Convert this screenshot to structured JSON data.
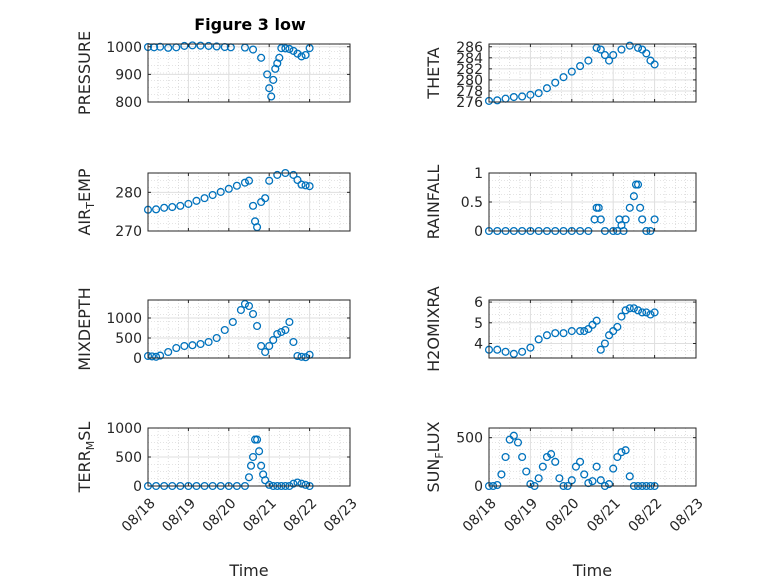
{
  "figure_title": "Figure 3 low",
  "colors": {
    "marker": "#0072BD",
    "axis": "#262626",
    "grid": "#dfdfdf",
    "minor_grid": "#c8c8c8"
  },
  "chart_data": [
    {
      "type": "scatter",
      "panel": "top-left",
      "ylabel": "PRESSURE",
      "ylabel_sub": "",
      "ylim": [
        800,
        1010
      ],
      "yticks": [
        800,
        900,
        1000
      ],
      "ytick_labels": [
        "800",
        "900",
        "1000"
      ],
      "xlim": [
        0,
        5
      ],
      "xticks": [
        0,
        1,
        2,
        3,
        4,
        5
      ],
      "xtick_labels": [],
      "xlabel": "",
      "x": [
        0.0,
        0.15,
        0.3,
        0.5,
        0.7,
        0.9,
        1.1,
        1.3,
        1.5,
        1.7,
        1.9,
        2.05,
        2.4,
        2.6,
        2.8,
        2.95,
        3.0,
        3.05,
        3.1,
        3.15,
        3.2,
        3.25,
        3.3,
        3.4,
        3.5,
        3.6,
        3.7,
        3.8,
        3.9,
        4.0
      ],
      "y": [
        999,
        998,
        1000,
        996,
        998,
        1003,
        1005,
        1004,
        1003,
        1001,
        999,
        998,
        997,
        990,
        960,
        900,
        850,
        820,
        880,
        920,
        940,
        960,
        995,
        994,
        992,
        985,
        975,
        965,
        970,
        995
      ]
    },
    {
      "type": "scatter",
      "panel": "top-right",
      "ylabel": "THETA",
      "ylabel_sub": "",
      "ylim": [
        276,
        286.5
      ],
      "yticks": [
        276,
        278,
        280,
        282,
        284,
        286
      ],
      "ytick_labels": [
        "276",
        "278",
        "280",
        "282",
        "284",
        "286"
      ],
      "xlim": [
        0,
        5
      ],
      "xticks": [
        0,
        1,
        2,
        3,
        4,
        5
      ],
      "xtick_labels": [],
      "xlabel": "",
      "x": [
        0.0,
        0.2,
        0.4,
        0.6,
        0.8,
        1.0,
        1.2,
        1.4,
        1.6,
        1.8,
        2.0,
        2.2,
        2.4,
        2.6,
        2.7,
        2.8,
        2.9,
        3.0,
        3.2,
        3.4,
        3.6,
        3.7,
        3.8,
        3.9,
        4.0
      ],
      "y": [
        276.2,
        276.3,
        276.6,
        276.9,
        277.0,
        277.3,
        277.6,
        278.5,
        279.5,
        280.5,
        281.5,
        282.5,
        283.5,
        285.8,
        285.5,
        284.5,
        283.5,
        284.5,
        285.5,
        286.2,
        285.8,
        285.5,
        284.8,
        283.5,
        282.8
      ]
    },
    {
      "type": "scatter",
      "panel": "row2-left",
      "ylabel": "AIR",
      "ylabel_sub": "T",
      "ylabel_rest": "EMP",
      "ylim": [
        270,
        285
      ],
      "yticks": [
        270,
        280
      ],
      "ytick_labels": [
        "270",
        "280"
      ],
      "xlim": [
        0,
        5
      ],
      "xticks": [
        0,
        1,
        2,
        3,
        4,
        5
      ],
      "xtick_labels": [],
      "xlabel": "",
      "x": [
        0.0,
        0.2,
        0.4,
        0.6,
        0.8,
        1.0,
        1.2,
        1.4,
        1.6,
        1.8,
        2.0,
        2.2,
        2.4,
        2.5,
        2.6,
        2.65,
        2.7,
        2.8,
        2.9,
        3.0,
        3.2,
        3.4,
        3.6,
        3.7,
        3.8,
        3.9,
        4.0
      ],
      "y": [
        275.5,
        275.6,
        276.0,
        276.2,
        276.5,
        277.0,
        277.8,
        278.5,
        279.3,
        280.1,
        280.9,
        281.7,
        282.5,
        283.0,
        276.5,
        272.5,
        271.0,
        277.5,
        278.5,
        283.0,
        284.5,
        285.0,
        284.5,
        283.2,
        282.0,
        281.8,
        281.6
      ]
    },
    {
      "type": "scatter",
      "panel": "row2-right",
      "ylabel": "RAINFALL",
      "ylabel_sub": "",
      "ylim": [
        0,
        1
      ],
      "yticks": [
        0,
        0.5,
        1
      ],
      "ytick_labels": [
        "0",
        "0.5",
        "1"
      ],
      "xlim": [
        0,
        5
      ],
      "xticks": [
        0,
        1,
        2,
        3,
        4,
        5
      ],
      "xtick_labels": [],
      "xlabel": "",
      "x": [
        0.0,
        0.2,
        0.4,
        0.6,
        0.8,
        1.0,
        1.2,
        1.4,
        1.6,
        1.8,
        2.0,
        2.2,
        2.4,
        2.55,
        2.6,
        2.65,
        2.7,
        2.8,
        3.0,
        3.1,
        3.15,
        3.2,
        3.25,
        3.3,
        3.4,
        3.5,
        3.55,
        3.6,
        3.65,
        3.7,
        3.8,
        3.9,
        4.0
      ],
      "y": [
        0,
        0,
        0,
        0,
        0,
        0,
        0,
        0,
        0,
        0,
        0,
        0,
        0,
        0.2,
        0.4,
        0.4,
        0.2,
        0,
        0,
        0,
        0.2,
        0.1,
        0,
        0.2,
        0.4,
        0.6,
        0.8,
        0.8,
        0.4,
        0.2,
        0,
        0,
        0.2
      ]
    },
    {
      "type": "scatter",
      "panel": "row3-left",
      "ylabel": "MIXDEPTH",
      "ylabel_sub": "",
      "ylim": [
        0,
        1450
      ],
      "yticks": [
        0,
        500,
        1000
      ],
      "ytick_labels": [
        "0",
        "500",
        "1000"
      ],
      "xlim": [
        0,
        5
      ],
      "xticks": [
        0,
        1,
        2,
        3,
        4,
        5
      ],
      "xtick_labels": [],
      "xlabel": "",
      "x": [
        0.0,
        0.1,
        0.2,
        0.3,
        0.5,
        0.7,
        0.9,
        1.1,
        1.3,
        1.5,
        1.7,
        1.9,
        2.1,
        2.3,
        2.4,
        2.5,
        2.6,
        2.7,
        2.8,
        2.9,
        3.0,
        3.1,
        3.2,
        3.3,
        3.4,
        3.5,
        3.6,
        3.7,
        3.8,
        3.9,
        4.0
      ],
      "y": [
        50,
        40,
        30,
        60,
        150,
        250,
        300,
        320,
        350,
        400,
        500,
        700,
        900,
        1200,
        1350,
        1300,
        1100,
        800,
        300,
        150,
        300,
        450,
        600,
        650,
        700,
        900,
        400,
        50,
        30,
        20,
        80
      ]
    },
    {
      "type": "scatter",
      "panel": "row3-right",
      "ylabel": "H2OMIXRA",
      "ylabel_sub": "",
      "ylim": [
        3.3,
        6.1
      ],
      "yticks": [
        4,
        5,
        6
      ],
      "ytick_labels": [
        "4",
        "5",
        "6"
      ],
      "xlim": [
        0,
        5
      ],
      "xticks": [
        0,
        1,
        2,
        3,
        4,
        5
      ],
      "xtick_labels": [],
      "xlabel": "",
      "x": [
        0.0,
        0.2,
        0.4,
        0.6,
        0.8,
        1.0,
        1.2,
        1.4,
        1.6,
        1.8,
        2.0,
        2.2,
        2.3,
        2.4,
        2.5,
        2.6,
        2.7,
        2.8,
        2.9,
        3.0,
        3.1,
        3.2,
        3.3,
        3.4,
        3.5,
        3.6,
        3.7,
        3.8,
        3.9,
        4.0
      ],
      "y": [
        3.7,
        3.7,
        3.6,
        3.5,
        3.6,
        3.8,
        4.2,
        4.4,
        4.5,
        4.5,
        4.6,
        4.6,
        4.6,
        4.7,
        4.9,
        5.1,
        3.7,
        4.0,
        4.4,
        4.6,
        4.8,
        5.3,
        5.6,
        5.7,
        5.7,
        5.6,
        5.5,
        5.5,
        5.4,
        5.5
      ]
    },
    {
      "type": "scatter",
      "panel": "bottom-left",
      "ylabel": "TERR",
      "ylabel_sub": "M",
      "ylabel_rest": "SL",
      "ylim": [
        0,
        1000
      ],
      "yticks": [
        0,
        500,
        1000
      ],
      "ytick_labels": [
        "0",
        "500",
        "1000"
      ],
      "xlim": [
        0,
        5
      ],
      "xticks": [
        0,
        1,
        2,
        3,
        4,
        5
      ],
      "xtick_labels": [
        "08/18",
        "08/19",
        "08/20",
        "08/21",
        "08/22",
        "08/23"
      ],
      "xlabel": "Time",
      "x": [
        0.0,
        0.2,
        0.4,
        0.6,
        0.8,
        1.0,
        1.2,
        1.4,
        1.6,
        1.8,
        2.0,
        2.2,
        2.4,
        2.5,
        2.55,
        2.6,
        2.65,
        2.7,
        2.75,
        2.8,
        2.85,
        2.9,
        3.0,
        3.1,
        3.2,
        3.3,
        3.4,
        3.5,
        3.6,
        3.7,
        3.8,
        3.9,
        4.0
      ],
      "y": [
        0,
        0,
        0,
        0,
        0,
        0,
        0,
        0,
        0,
        0,
        0,
        0,
        0,
        150,
        350,
        500,
        800,
        800,
        600,
        350,
        200,
        100,
        20,
        0,
        0,
        0,
        0,
        0,
        40,
        60,
        40,
        20,
        0
      ]
    },
    {
      "type": "scatter",
      "panel": "bottom-right",
      "ylabel": "SUN",
      "ylabel_sub": "F",
      "ylabel_rest": "LUX",
      "ylim": [
        0,
        600
      ],
      "yticks": [
        0,
        500
      ],
      "ytick_labels": [
        "0",
        "500"
      ],
      "xlim": [
        0,
        5
      ],
      "xticks": [
        0,
        1,
        2,
        3,
        4,
        5
      ],
      "xtick_labels": [
        "08/18",
        "08/19",
        "08/20",
        "08/21",
        "08/22",
        "08/23"
      ],
      "xlabel": "Time",
      "x": [
        0.0,
        0.1,
        0.2,
        0.3,
        0.4,
        0.5,
        0.6,
        0.7,
        0.8,
        0.9,
        1.0,
        1.1,
        1.2,
        1.3,
        1.4,
        1.5,
        1.6,
        1.7,
        1.8,
        1.9,
        2.0,
        2.1,
        2.2,
        2.3,
        2.4,
        2.5,
        2.6,
        2.7,
        2.8,
        2.9,
        3.0,
        3.1,
        3.2,
        3.3,
        3.4,
        3.5,
        3.6,
        3.7,
        3.8,
        3.9,
        4.0
      ],
      "y": [
        0,
        0,
        10,
        120,
        300,
        480,
        520,
        450,
        300,
        150,
        20,
        0,
        80,
        200,
        300,
        330,
        250,
        80,
        0,
        0,
        60,
        200,
        250,
        120,
        30,
        50,
        200,
        60,
        0,
        20,
        180,
        300,
        350,
        370,
        100,
        0,
        0,
        0,
        0,
        0,
        0
      ]
    }
  ]
}
